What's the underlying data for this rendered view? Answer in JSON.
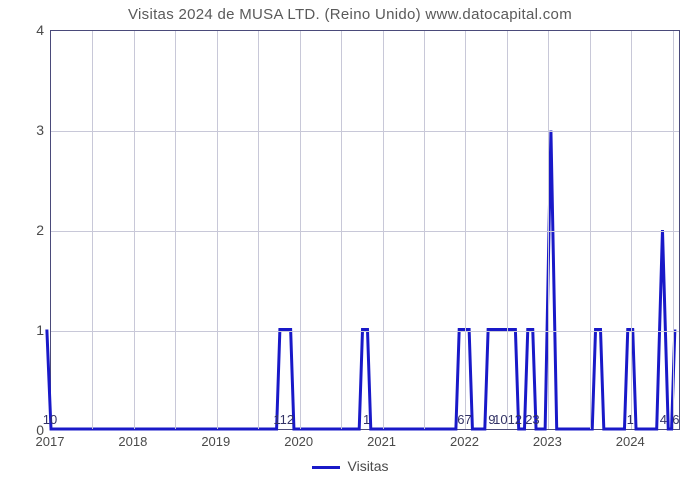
{
  "chart": {
    "type": "line",
    "title": "Visitas 2024 de MUSA LTD. (Reino Unido) www.datocapital.com",
    "title_fontsize": 15,
    "title_color": "#5a5a5a",
    "background_color": "#ffffff",
    "plot_border_color": "#4a4a7a",
    "grid_color": "#c8c8d8",
    "series_color": "#1919c8",
    "series_line_width": 3,
    "ylabel_color": "#4a4a4a",
    "xlabel_color": "#4a4a4a",
    "value_label_color": "#333366",
    "ylim": [
      0,
      4
    ],
    "yticks": [
      0,
      1,
      2,
      3,
      4
    ],
    "xlim": [
      2017,
      2024.6
    ],
    "xticks": [
      2017,
      2018,
      2019,
      2020,
      2021,
      2022,
      2023,
      2024
    ],
    "xtick_labels": [
      "2017",
      "2018",
      "2019",
      "2020",
      "2021",
      "2022",
      "2023",
      "2024"
    ],
    "vgrid_step": 0.5,
    "legend_label": "Visitas",
    "value_labels": [
      {
        "x": 2017.0,
        "text": "10"
      },
      {
        "x": 2019.82,
        "text": "112"
      },
      {
        "x": 2020.82,
        "text": "1"
      },
      {
        "x": 2022.0,
        "text": "67"
      },
      {
        "x": 2022.33,
        "text": "9"
      },
      {
        "x": 2022.52,
        "text": "1012"
      },
      {
        "x": 2022.82,
        "text": "23"
      },
      {
        "x": 2024.0,
        "text": "1"
      },
      {
        "x": 2024.4,
        "text": "4"
      },
      {
        "x": 2024.55,
        "text": "6"
      }
    ],
    "data": [
      {
        "x": 2016.95,
        "y": 1.0
      },
      {
        "x": 2017.0,
        "y": 0.0
      },
      {
        "x": 2019.73,
        "y": 0.0
      },
      {
        "x": 2019.77,
        "y": 1.0
      },
      {
        "x": 2019.9,
        "y": 1.0
      },
      {
        "x": 2019.94,
        "y": 0.0
      },
      {
        "x": 2020.73,
        "y": 0.0
      },
      {
        "x": 2020.77,
        "y": 1.0
      },
      {
        "x": 2020.83,
        "y": 1.0
      },
      {
        "x": 2020.87,
        "y": 0.0
      },
      {
        "x": 2021.9,
        "y": 0.0
      },
      {
        "x": 2021.94,
        "y": 1.0
      },
      {
        "x": 2022.06,
        "y": 1.0
      },
      {
        "x": 2022.1,
        "y": 0.0
      },
      {
        "x": 2022.25,
        "y": 0.0
      },
      {
        "x": 2022.29,
        "y": 1.0
      },
      {
        "x": 2022.62,
        "y": 1.0
      },
      {
        "x": 2022.66,
        "y": 0.0
      },
      {
        "x": 2022.73,
        "y": 0.0
      },
      {
        "x": 2022.77,
        "y": 1.0
      },
      {
        "x": 2022.83,
        "y": 1.0
      },
      {
        "x": 2022.87,
        "y": 0.0
      },
      {
        "x": 2022.98,
        "y": 0.0
      },
      {
        "x": 2023.05,
        "y": 3.0
      },
      {
        "x": 2023.12,
        "y": 0.0
      },
      {
        "x": 2023.55,
        "y": 0.0
      },
      {
        "x": 2023.59,
        "y": 1.0
      },
      {
        "x": 2023.65,
        "y": 1.0
      },
      {
        "x": 2023.69,
        "y": 0.0
      },
      {
        "x": 2023.94,
        "y": 0.0
      },
      {
        "x": 2023.98,
        "y": 1.0
      },
      {
        "x": 2024.04,
        "y": 1.0
      },
      {
        "x": 2024.08,
        "y": 0.0
      },
      {
        "x": 2024.33,
        "y": 0.0
      },
      {
        "x": 2024.4,
        "y": 2.0
      },
      {
        "x": 2024.47,
        "y": 0.0
      },
      {
        "x": 2024.51,
        "y": 0.0
      },
      {
        "x": 2024.55,
        "y": 1.0
      }
    ]
  }
}
